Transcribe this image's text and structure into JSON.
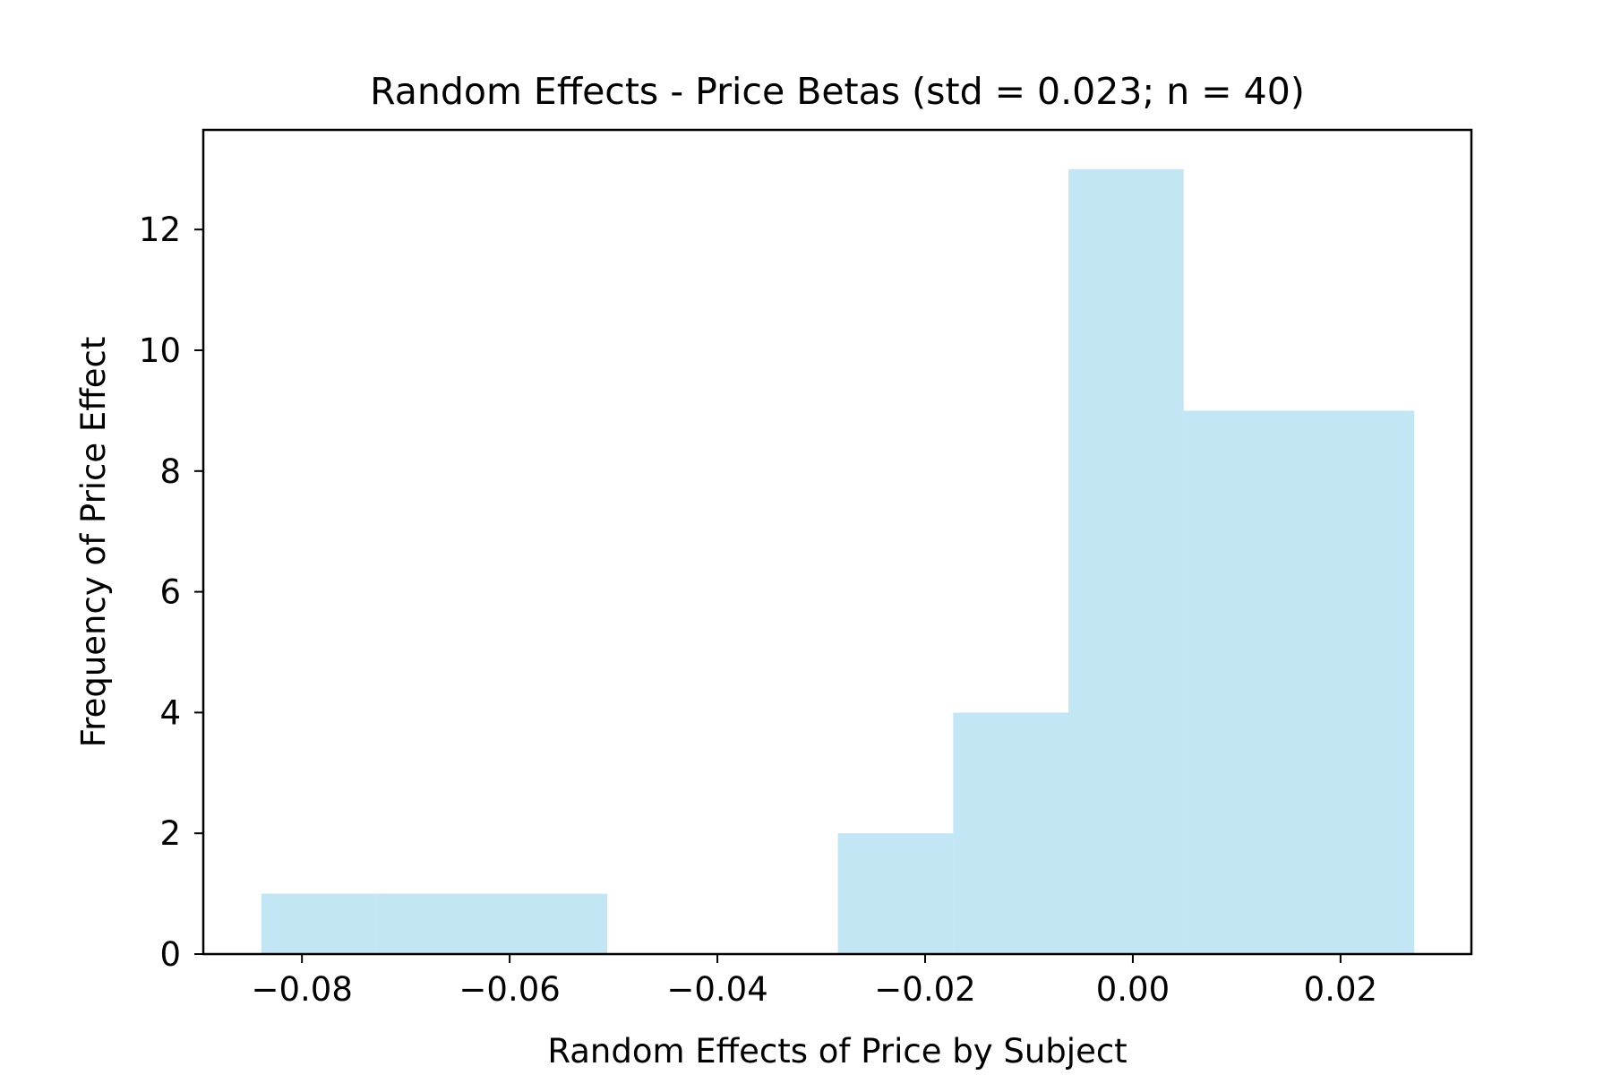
{
  "chart_data": {
    "type": "bar",
    "title": "Random Effects - Price Betas (std = 0.023; n = 40)",
    "xlabel": "Random Effects of Price by Subject",
    "ylabel": "Frequency of Price Effect",
    "xlim": [
      -0.0895,
      0.0326
    ],
    "ylim": [
      0,
      13.65
    ],
    "x_ticks": [
      -0.08,
      -0.06,
      -0.04,
      -0.02,
      0.0,
      0.02
    ],
    "x_tick_labels": [
      "−0.08",
      "−0.06",
      "−0.04",
      "−0.02",
      "0.00",
      "0.02"
    ],
    "y_ticks": [
      0,
      2,
      4,
      6,
      8,
      10,
      12
    ],
    "y_tick_labels": [
      "0",
      "2",
      "4",
      "6",
      "8",
      "10",
      "12"
    ],
    "bins": [
      {
        "x0": -0.0839,
        "x1": -0.0728,
        "count": 1
      },
      {
        "x0": -0.0728,
        "x1": -0.0617,
        "count": 1
      },
      {
        "x0": -0.0617,
        "x1": -0.0506,
        "count": 1
      },
      {
        "x0": -0.0506,
        "x1": -0.0395,
        "count": 0
      },
      {
        "x0": -0.0395,
        "x1": -0.0284,
        "count": 0
      },
      {
        "x0": -0.0284,
        "x1": -0.0173,
        "count": 2
      },
      {
        "x0": -0.0173,
        "x1": -0.0062,
        "count": 4
      },
      {
        "x0": -0.0062,
        "x1": 0.0049,
        "count": 13
      },
      {
        "x0": 0.0049,
        "x1": 0.016,
        "count": 9
      },
      {
        "x0": 0.016,
        "x1": 0.0271,
        "count": 9
      }
    ],
    "grid": false,
    "legend": "none",
    "bar_color": "#87CEEB",
    "bar_opacity": 0.5
  }
}
